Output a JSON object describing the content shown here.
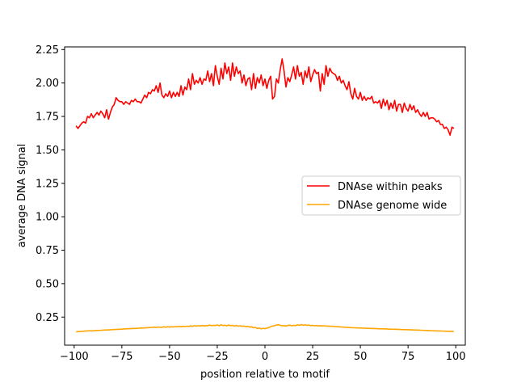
{
  "chart_data": {
    "type": "line",
    "xlabel": "position relative to motif",
    "ylabel": "average DNA signal",
    "xlim": [
      -105,
      105
    ],
    "ylim": [
      0.04,
      2.27
    ],
    "xticks": [
      -100,
      -75,
      -50,
      -25,
      0,
      25,
      50,
      75,
      100
    ],
    "yticks": [
      0.25,
      0.5,
      0.75,
      1.0,
      1.25,
      1.5,
      1.75,
      2.0,
      2.25
    ],
    "xtick_labels": [
      "−100",
      "−75",
      "−50",
      "−25",
      "0",
      "25",
      "50",
      "75",
      "100"
    ],
    "ytick_labels": [
      "0.25",
      "0.50",
      "0.75",
      "1.00",
      "1.25",
      "1.50",
      "1.75",
      "2.00",
      "2.25"
    ],
    "legend_position": "center-right",
    "grid": false,
    "x_range": [
      -99,
      99
    ],
    "series": [
      {
        "name": "DNAse within peaks",
        "color": "#ff0000",
        "values": [
          1.68,
          1.66,
          1.68,
          1.7,
          1.71,
          1.7,
          1.75,
          1.74,
          1.77,
          1.74,
          1.76,
          1.78,
          1.76,
          1.79,
          1.77,
          1.74,
          1.8,
          1.73,
          1.78,
          1.82,
          1.84,
          1.89,
          1.87,
          1.86,
          1.86,
          1.84,
          1.86,
          1.85,
          1.84,
          1.87,
          1.86,
          1.88,
          1.86,
          1.86,
          1.85,
          1.88,
          1.91,
          1.89,
          1.93,
          1.92,
          1.95,
          1.94,
          1.98,
          1.93,
          2.0,
          1.91,
          1.89,
          1.92,
          1.9,
          1.94,
          1.89,
          1.93,
          1.9,
          1.93,
          1.9,
          1.98,
          1.91,
          1.97,
          1.95,
          2.03,
          1.95,
          2.07,
          1.99,
          2.02,
          2.0,
          2.04,
          1.99,
          2.03,
          2.02,
          2.09,
          2.01,
          2.07,
          1.98,
          2.13,
          2.05,
          1.99,
          2.11,
          2.03,
          2.15,
          2.07,
          2.12,
          2.02,
          2.15,
          2.05,
          2.12,
          2.07,
          2.09,
          2.0,
          2.06,
          1.98,
          2.03,
          2.04,
          1.95,
          2.07,
          1.96,
          2.04,
          2.0,
          2.06,
          1.98,
          2.03,
          1.96,
          2.02,
          2.05,
          1.88,
          1.9,
          2.03,
          2.0,
          2.1,
          2.18,
          2.09,
          1.97,
          2.04,
          2.01,
          2.06,
          2.12,
          2.03,
          2.13,
          2.05,
          2.08,
          1.99,
          2.09,
          2.04,
          2.12,
          2.01,
          2.06,
          2.1,
          2.07,
          2.08,
          1.94,
          2.07,
          1.99,
          2.13,
          2.05,
          2.11,
          2.08,
          2.07,
          2.06,
          2.02,
          2.05,
          2.0,
          2.02,
          1.98,
          1.95,
          2.01,
          1.92,
          1.88,
          1.96,
          1.9,
          1.88,
          1.93,
          1.87,
          1.9,
          1.87,
          1.89,
          1.88,
          1.9,
          1.85,
          1.86,
          1.85,
          1.87,
          1.81,
          1.88,
          1.83,
          1.87,
          1.8,
          1.85,
          1.81,
          1.87,
          1.79,
          1.84,
          1.84,
          1.78,
          1.85,
          1.81,
          1.79,
          1.84,
          1.8,
          1.83,
          1.78,
          1.8,
          1.77,
          1.75,
          1.78,
          1.75,
          1.78,
          1.73,
          1.74,
          1.74,
          1.73,
          1.71,
          1.72,
          1.69,
          1.69,
          1.66,
          1.67,
          1.65,
          1.61,
          1.67,
          1.66
        ]
      },
      {
        "name": "DNAse genome wide",
        "color": "#ffa500",
        "values": [
          0.141,
          0.141,
          0.142,
          0.143,
          0.144,
          0.146,
          0.146,
          0.148,
          0.147,
          0.148,
          0.149,
          0.15,
          0.15,
          0.151,
          0.152,
          0.153,
          0.154,
          0.154,
          0.155,
          0.156,
          0.157,
          0.158,
          0.158,
          0.159,
          0.16,
          0.161,
          0.162,
          0.163,
          0.163,
          0.164,
          0.165,
          0.165,
          0.166,
          0.167,
          0.168,
          0.168,
          0.169,
          0.17,
          0.171,
          0.172,
          0.173,
          0.175,
          0.172,
          0.176,
          0.173,
          0.174,
          0.177,
          0.174,
          0.178,
          0.175,
          0.178,
          0.176,
          0.179,
          0.177,
          0.18,
          0.178,
          0.181,
          0.179,
          0.182,
          0.18,
          0.184,
          0.181,
          0.186,
          0.182,
          0.185,
          0.183,
          0.187,
          0.184,
          0.186,
          0.185,
          0.19,
          0.186,
          0.188,
          0.187,
          0.191,
          0.185,
          0.193,
          0.186,
          0.189,
          0.184,
          0.191,
          0.185,
          0.188,
          0.183,
          0.187,
          0.182,
          0.185,
          0.181,
          0.183,
          0.178,
          0.181,
          0.175,
          0.178,
          0.17,
          0.173,
          0.165,
          0.168,
          0.162,
          0.166,
          0.163,
          0.168,
          0.171,
          0.178,
          0.183,
          0.185,
          0.19,
          0.193,
          0.188,
          0.185,
          0.186,
          0.183,
          0.187,
          0.19,
          0.185,
          0.188,
          0.186,
          0.192,
          0.188,
          0.194,
          0.189,
          0.192,
          0.188,
          0.19,
          0.186,
          0.188,
          0.185,
          0.187,
          0.184,
          0.186,
          0.183,
          0.185,
          0.182,
          0.183,
          0.181,
          0.182,
          0.18,
          0.179,
          0.178,
          0.177,
          0.176,
          0.175,
          0.174,
          0.173,
          0.172,
          0.171,
          0.17,
          0.17,
          0.169,
          0.169,
          0.168,
          0.168,
          0.167,
          0.166,
          0.166,
          0.165,
          0.165,
          0.164,
          0.164,
          0.163,
          0.163,
          0.162,
          0.162,
          0.161,
          0.161,
          0.16,
          0.16,
          0.159,
          0.159,
          0.158,
          0.158,
          0.157,
          0.157,
          0.156,
          0.156,
          0.155,
          0.155,
          0.154,
          0.154,
          0.153,
          0.153,
          0.152,
          0.151,
          0.151,
          0.15,
          0.15,
          0.149,
          0.148,
          0.148,
          0.147,
          0.147,
          0.146,
          0.146,
          0.145,
          0.145,
          0.144,
          0.144,
          0.143,
          0.143,
          0.142
        ]
      }
    ]
  }
}
